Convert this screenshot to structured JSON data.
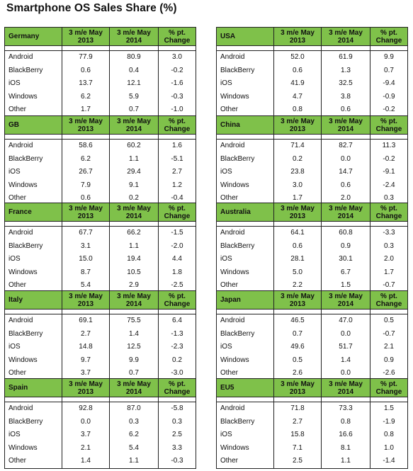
{
  "title": "Smartphone OS Sales Share (%)",
  "columns": [
    "3 m/e May\n2013",
    "3 m/e May\n2014",
    "% pt.\nChange"
  ],
  "regions": [
    {
      "name": "Germany",
      "rows": [
        {
          "os": "Android",
          "y2013": "77.9",
          "y2014": "80.9",
          "change": "3.0"
        },
        {
          "os": "BlackBerry",
          "y2013": "0.6",
          "y2014": "0.4",
          "change": "-0.2"
        },
        {
          "os": "iOS",
          "y2013": "13.7",
          "y2014": "12.1",
          "change": "-1.6"
        },
        {
          "os": "Windows",
          "y2013": "6.2",
          "y2014": "5.9",
          "change": "-0.3"
        },
        {
          "os": "Other",
          "y2013": "1.7",
          "y2014": "0.7",
          "change": "-1.0"
        }
      ]
    },
    {
      "name": "USA",
      "rows": [
        {
          "os": "Android",
          "y2013": "52.0",
          "y2014": "61.9",
          "change": "9.9"
        },
        {
          "os": "BlackBerry",
          "y2013": "0.6",
          "y2014": "1.3",
          "change": "0.7"
        },
        {
          "os": "iOS",
          "y2013": "41.9",
          "y2014": "32.5",
          "change": "-9.4"
        },
        {
          "os": "Windows",
          "y2013": "4.7",
          "y2014": "3.8",
          "change": "-0.9"
        },
        {
          "os": "Other",
          "y2013": "0.8",
          "y2014": "0.6",
          "change": "-0.2"
        }
      ]
    },
    {
      "name": "GB",
      "rows": [
        {
          "os": "Android",
          "y2013": "58.6",
          "y2014": "60.2",
          "change": "1.6"
        },
        {
          "os": "BlackBerry",
          "y2013": "6.2",
          "y2014": "1.1",
          "change": "-5.1"
        },
        {
          "os": "iOS",
          "y2013": "26.7",
          "y2014": "29.4",
          "change": "2.7"
        },
        {
          "os": "Windows",
          "y2013": "7.9",
          "y2014": "9.1",
          "change": "1.2"
        },
        {
          "os": "Other",
          "y2013": "0.6",
          "y2014": "0.2",
          "change": "-0.4"
        }
      ]
    },
    {
      "name": "China",
      "rows": [
        {
          "os": "Android",
          "y2013": "71.4",
          "y2014": "82.7",
          "change": "11.3"
        },
        {
          "os": "BlackBerry",
          "y2013": "0.2",
          "y2014": "0.0",
          "change": "-0.2"
        },
        {
          "os": "iOS",
          "y2013": "23.8",
          "y2014": "14.7",
          "change": "-9.1"
        },
        {
          "os": "Windows",
          "y2013": "3.0",
          "y2014": "0.6",
          "change": "-2.4"
        },
        {
          "os": "Other",
          "y2013": "1.7",
          "y2014": "2.0",
          "change": "0.3"
        }
      ]
    },
    {
      "name": "France",
      "rows": [
        {
          "os": "Android",
          "y2013": "67.7",
          "y2014": "66.2",
          "change": "-1.5"
        },
        {
          "os": "BlackBerry",
          "y2013": "3.1",
          "y2014": "1.1",
          "change": "-2.0"
        },
        {
          "os": "iOS",
          "y2013": "15.0",
          "y2014": "19.4",
          "change": "4.4"
        },
        {
          "os": "Windows",
          "y2013": "8.7",
          "y2014": "10.5",
          "change": "1.8"
        },
        {
          "os": "Other",
          "y2013": "5.4",
          "y2014": "2.9",
          "change": "-2.5"
        }
      ]
    },
    {
      "name": "Australia",
      "rows": [
        {
          "os": "Android",
          "y2013": "64.1",
          "y2014": "60.8",
          "change": "-3.3"
        },
        {
          "os": "BlackBerry",
          "y2013": "0.6",
          "y2014": "0.9",
          "change": "0.3"
        },
        {
          "os": "iOS",
          "y2013": "28.1",
          "y2014": "30.1",
          "change": "2.0"
        },
        {
          "os": "Windows",
          "y2013": "5.0",
          "y2014": "6.7",
          "change": "1.7"
        },
        {
          "os": "Other",
          "y2013": "2.2",
          "y2014": "1.5",
          "change": "-0.7"
        }
      ]
    },
    {
      "name": "Italy",
      "rows": [
        {
          "os": "Android",
          "y2013": "69.1",
          "y2014": "75.5",
          "change": "6.4"
        },
        {
          "os": "BlackBerry",
          "y2013": "2.7",
          "y2014": "1.4",
          "change": "-1.3"
        },
        {
          "os": "iOS",
          "y2013": "14.8",
          "y2014": "12.5",
          "change": "-2.3"
        },
        {
          "os": "Windows",
          "y2013": "9.7",
          "y2014": "9.9",
          "change": "0.2"
        },
        {
          "os": "Other",
          "y2013": "3.7",
          "y2014": "0.7",
          "change": "-3.0"
        }
      ]
    },
    {
      "name": "Japan",
      "rows": [
        {
          "os": "Android",
          "y2013": "46.5",
          "y2014": "47.0",
          "change": "0.5"
        },
        {
          "os": "BlackBerry",
          "y2013": "0.7",
          "y2014": "0.0",
          "change": "-0.7"
        },
        {
          "os": "iOS",
          "y2013": "49.6",
          "y2014": "51.7",
          "change": "2.1"
        },
        {
          "os": "Windows",
          "y2013": "0.5",
          "y2014": "1.4",
          "change": "0.9"
        },
        {
          "os": "Other",
          "y2013": "2.6",
          "y2014": "0.0",
          "change": "-2.6"
        }
      ]
    },
    {
      "name": "Spain",
      "rows": [
        {
          "os": "Android",
          "y2013": "92.8",
          "y2014": "87.0",
          "change": "-5.8"
        },
        {
          "os": "BlackBerry",
          "y2013": "0.0",
          "y2014": "0.3",
          "change": "0.3"
        },
        {
          "os": "iOS",
          "y2013": "3.7",
          "y2014": "6.2",
          "change": "2.5"
        },
        {
          "os": "Windows",
          "y2013": "2.1",
          "y2014": "5.4",
          "change": "3.3"
        },
        {
          "os": "Other",
          "y2013": "1.4",
          "y2014": "1.1",
          "change": "-0.3"
        }
      ]
    },
    {
      "name": "EU5",
      "rows": [
        {
          "os": "Android",
          "y2013": "71.8",
          "y2014": "73.3",
          "change": "1.5"
        },
        {
          "os": "BlackBerry",
          "y2013": "2.7",
          "y2014": "0.8",
          "change": "-1.9"
        },
        {
          "os": "iOS",
          "y2013": "15.8",
          "y2014": "16.6",
          "change": "0.8"
        },
        {
          "os": "Windows",
          "y2013": "7.1",
          "y2014": "8.1",
          "change": "1.0"
        },
        {
          "os": "Other",
          "y2013": "2.5",
          "y2014": "1.1",
          "change": "-1.4"
        }
      ]
    }
  ]
}
